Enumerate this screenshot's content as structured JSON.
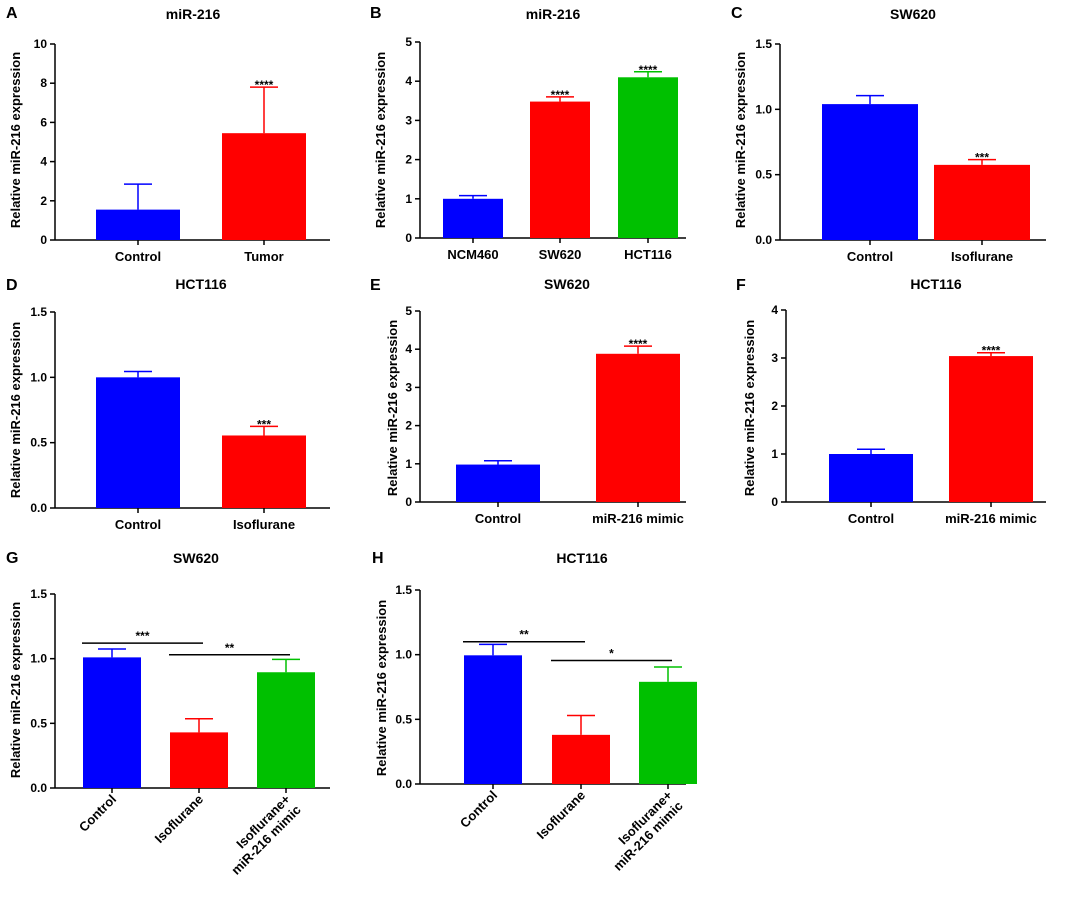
{
  "chart_data": [
    {
      "panel": "A",
      "type": "bar",
      "title": "miR-216",
      "ylabel": "Relative miR-216 expression",
      "ylim": [
        0,
        10
      ],
      "yticks": [
        "0",
        "2",
        "4",
        "6",
        "8",
        "10"
      ],
      "categories": [
        "Control",
        "Tumor"
      ],
      "values": [
        1.55,
        5.45
      ],
      "errors": [
        1.3,
        2.35
      ],
      "colors": [
        "#0000FF",
        "#FF0000"
      ],
      "significance": [
        "",
        "****"
      ],
      "brackets": []
    },
    {
      "panel": "B",
      "type": "bar",
      "title": "miR-216",
      "ylabel": "Relative miR-216 expression",
      "ylim": [
        0,
        5
      ],
      "yticks": [
        "0",
        "1",
        "2",
        "3",
        "4",
        "5"
      ],
      "categories": [
        "NCM460",
        "SW620",
        "HCT116"
      ],
      "values": [
        1.0,
        3.48,
        4.1
      ],
      "errors": [
        0.08,
        0.12,
        0.14
      ],
      "colors": [
        "#0000FF",
        "#FF0000",
        "#00C000"
      ],
      "significance": [
        "",
        "****",
        "****"
      ],
      "brackets": []
    },
    {
      "panel": "C",
      "type": "bar",
      "title": "SW620",
      "ylabel": "Relative miR-216 expression",
      "ylim": [
        0,
        1.5
      ],
      "yticks": [
        "0.0",
        "0.5",
        "1.0",
        "1.5"
      ],
      "categories": [
        "Control",
        "Isoflurane"
      ],
      "values": [
        1.04,
        0.575
      ],
      "errors": [
        0.065,
        0.04
      ],
      "colors": [
        "#0000FF",
        "#FF0000"
      ],
      "significance": [
        "",
        "***"
      ],
      "brackets": []
    },
    {
      "panel": "D",
      "type": "bar",
      "title": "HCT116",
      "ylabel": "Relative miR-216 expression",
      "ylim": [
        0,
        1.5
      ],
      "yticks": [
        "0.0",
        "0.5",
        "1.0",
        "1.5"
      ],
      "categories": [
        "Control",
        "Isoflurane"
      ],
      "values": [
        1.0,
        0.555
      ],
      "errors": [
        0.045,
        0.07
      ],
      "colors": [
        "#0000FF",
        "#FF0000"
      ],
      "significance": [
        "",
        "***"
      ],
      "brackets": []
    },
    {
      "panel": "E",
      "type": "bar",
      "title": "SW620",
      "ylabel": "Relative miR-216 expression",
      "ylim": [
        0,
        5
      ],
      "yticks": [
        "0",
        "1",
        "2",
        "3",
        "4",
        "5"
      ],
      "categories": [
        "Control",
        "miR-216 mimic"
      ],
      "values": [
        0.98,
        3.88
      ],
      "errors": [
        0.1,
        0.2
      ],
      "colors": [
        "#0000FF",
        "#FF0000"
      ],
      "significance": [
        "",
        "****"
      ],
      "brackets": []
    },
    {
      "panel": "F",
      "type": "bar",
      "title": "HCT116",
      "ylabel": "Relative miR-216 expression",
      "ylim": [
        0,
        4
      ],
      "yticks": [
        "0",
        "1",
        "2",
        "3",
        "4"
      ],
      "categories": [
        "Control",
        "miR-216 mimic"
      ],
      "values": [
        1.0,
        3.04
      ],
      "errors": [
        0.1,
        0.07
      ],
      "colors": [
        "#0000FF",
        "#FF0000"
      ],
      "significance": [
        "",
        "****"
      ],
      "brackets": []
    },
    {
      "panel": "G",
      "type": "bar",
      "title": "SW620",
      "ylabel": "Relative miR-216 expression",
      "ylim": [
        0,
        1.5
      ],
      "yticks": [
        "0.0",
        "0.5",
        "1.0",
        "1.5"
      ],
      "categories": [
        "Control",
        "Isoflurane",
        "Isoflurane+\nmiR-216 mimic"
      ],
      "values": [
        1.01,
        0.43,
        0.895
      ],
      "errors": [
        0.065,
        0.105,
        0.1
      ],
      "colors": [
        "#0000FF",
        "#FF0000",
        "#00C000"
      ],
      "significance": [
        "",
        "",
        ""
      ],
      "brackets": [
        {
          "from": 0,
          "to": 1,
          "y": 1.12,
          "label": "***"
        },
        {
          "from": 1,
          "to": 2,
          "y": 1.03,
          "label": "**"
        }
      ]
    },
    {
      "panel": "H",
      "type": "bar",
      "title": "HCT116",
      "ylabel": "Relative miR-216 expression",
      "ylim": [
        0,
        1.5
      ],
      "yticks": [
        "0.0",
        "0.5",
        "1.0",
        "1.5"
      ],
      "categories": [
        "Control",
        "Isoflurane",
        "Isoflurane+\nmiR-216 mimic"
      ],
      "values": [
        0.995,
        0.38,
        0.79
      ],
      "errors": [
        0.085,
        0.15,
        0.115
      ],
      "colors": [
        "#0000FF",
        "#FF0000",
        "#00C000"
      ],
      "significance": [
        "",
        "",
        ""
      ],
      "brackets": [
        {
          "from": 0,
          "to": 1,
          "y": 1.1,
          "label": "**"
        },
        {
          "from": 1,
          "to": 2,
          "y": 0.955,
          "label": "*"
        }
      ]
    }
  ]
}
